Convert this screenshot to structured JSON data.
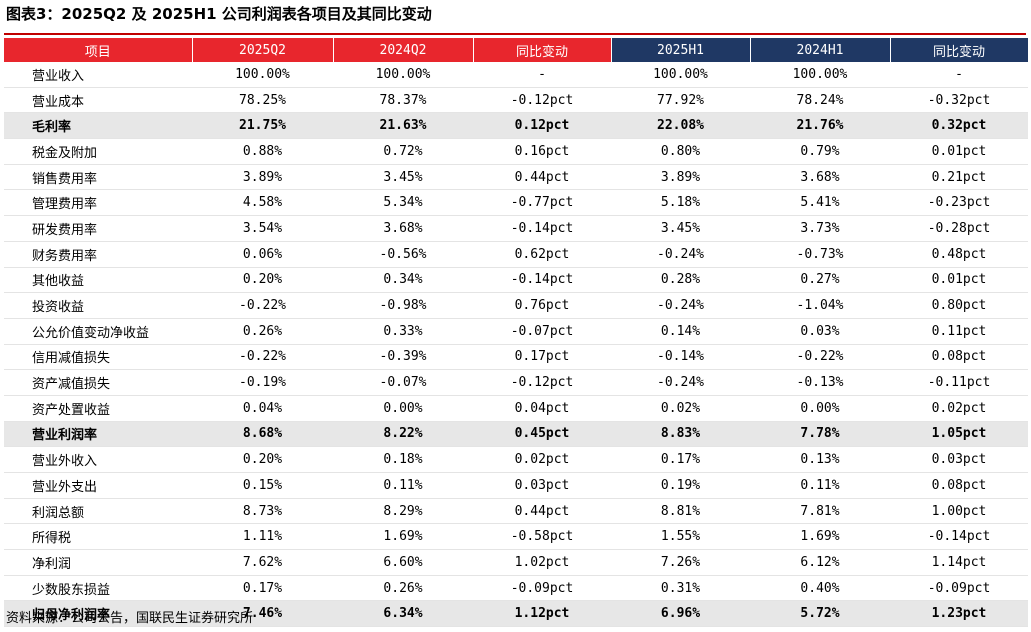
{
  "title": "图表3：2025Q2 及 2025H1 公司利润表各项目及其同比变动",
  "table": {
    "header": [
      "项目",
      "2025Q2",
      "2024Q2",
      "同比变动",
      "2025H1",
      "2024H1",
      "同比变动"
    ],
    "rows": [
      [
        "营业收入",
        "100.00%",
        "100.00%",
        "-",
        "100.00%",
        "100.00%",
        "-"
      ],
      [
        "营业成本",
        "78.25%",
        "78.37%",
        "-0.12pct",
        "77.92%",
        "78.24%",
        "-0.32pct"
      ],
      [
        "毛利率",
        "21.75%",
        "21.63%",
        "0.12pct",
        "22.08%",
        "21.76%",
        "0.32pct"
      ],
      [
        "税金及附加",
        "0.88%",
        "0.72%",
        "0.16pct",
        "0.80%",
        "0.79%",
        "0.01pct"
      ],
      [
        "销售费用率",
        "3.89%",
        "3.45%",
        "0.44pct",
        "3.89%",
        "3.68%",
        "0.21pct"
      ],
      [
        "管理费用率",
        "4.58%",
        "5.34%",
        "-0.77pct",
        "5.18%",
        "5.41%",
        "-0.23pct"
      ],
      [
        "研发费用率",
        "3.54%",
        "3.68%",
        "-0.14pct",
        "3.45%",
        "3.73%",
        "-0.28pct"
      ],
      [
        "财务费用率",
        "0.06%",
        "-0.56%",
        "0.62pct",
        "-0.24%",
        "-0.73%",
        "0.48pct"
      ],
      [
        "其他收益",
        "0.20%",
        "0.34%",
        "-0.14pct",
        "0.28%",
        "0.27%",
        "0.01pct"
      ],
      [
        "投资收益",
        "-0.22%",
        "-0.98%",
        "0.76pct",
        "-0.24%",
        "-1.04%",
        "0.80pct"
      ],
      [
        "公允价值变动净收益",
        "0.26%",
        "0.33%",
        "-0.07pct",
        "0.14%",
        "0.03%",
        "0.11pct"
      ],
      [
        "信用减值损失",
        "-0.22%",
        "-0.39%",
        "0.17pct",
        "-0.14%",
        "-0.22%",
        "0.08pct"
      ],
      [
        "资产减值损失",
        "-0.19%",
        "-0.07%",
        "-0.12pct",
        "-0.24%",
        "-0.13%",
        "-0.11pct"
      ],
      [
        "资产处置收益",
        "0.04%",
        "0.00%",
        "0.04pct",
        "0.02%",
        "0.00%",
        "0.02pct"
      ],
      [
        "营业利润率",
        "8.68%",
        "8.22%",
        "0.45pct",
        "8.83%",
        "7.78%",
        "1.05pct"
      ],
      [
        "营业外收入",
        "0.20%",
        "0.18%",
        "0.02pct",
        "0.17%",
        "0.13%",
        "0.03pct"
      ],
      [
        "营业外支出",
        "0.15%",
        "0.11%",
        "0.03pct",
        "0.19%",
        "0.11%",
        "0.08pct"
      ],
      [
        "利润总额",
        "8.73%",
        "8.29%",
        "0.44pct",
        "8.81%",
        "7.81%",
        "1.00pct"
      ],
      [
        "所得税",
        "1.11%",
        "1.69%",
        "-0.58pct",
        "1.55%",
        "1.69%",
        "-0.14pct"
      ],
      [
        "净利润",
        "7.62%",
        "6.60%",
        "1.02pct",
        "7.26%",
        "6.12%",
        "1.14pct"
      ],
      [
        "少数股东损益",
        "0.17%",
        "0.26%",
        "-0.09pct",
        "0.31%",
        "0.40%",
        "-0.09pct"
      ],
      [
        "归母净利润率",
        "7.46%",
        "6.34%",
        "1.12pct",
        "6.96%",
        "5.72%",
        "1.23pct"
      ]
    ]
  },
  "source": "资料来源：公司公告，国联民生证券研究所"
}
